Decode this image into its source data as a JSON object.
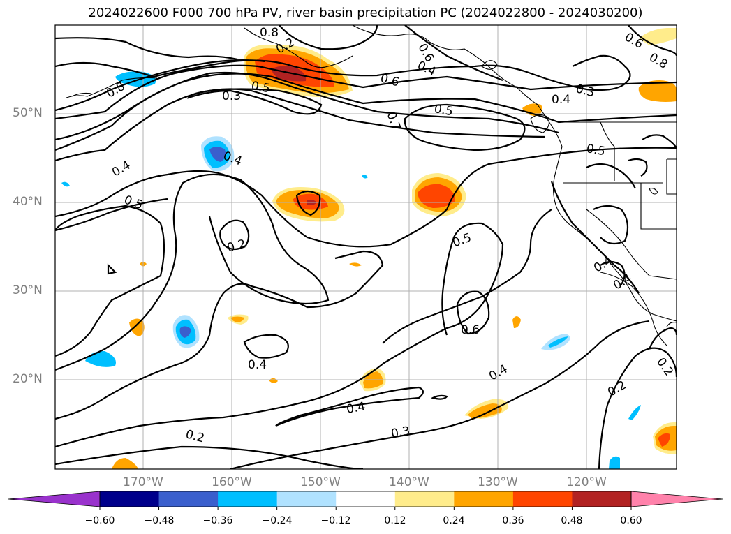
{
  "title": "2024022600 F000 700 hPa PV, river basin precipitation PC (2024022800 - 2024030200)",
  "lat_labels": [
    "50°N",
    "40°N",
    "30°N",
    "20°N"
  ],
  "lon_labels": [
    "170°W",
    "160°W",
    "150°W",
    "140°W",
    "130°W",
    "120°W"
  ],
  "contour_labels": [
    "0.8",
    "0.3",
    "0.6",
    "0.4",
    "0.6",
    "0.5",
    "0.8",
    "0.5",
    "0.3",
    "0.6",
    "0.7",
    "0.8",
    "0.4",
    "0.5",
    "0.4",
    "0.4",
    "0.5",
    "0.4",
    "0.2",
    "0.5",
    "0.4",
    "0.2",
    "0.6",
    "0.4",
    "0.4",
    "0.4",
    "0.3",
    "0.2",
    "0.2",
    "0.2"
  ],
  "colorbar": {
    "ticks": [
      "−0.60",
      "−0.48",
      "−0.36",
      "−0.24",
      "−0.12",
      "0.12",
      "0.24",
      "0.36",
      "0.48",
      "0.60"
    ],
    "colors": [
      "#9932cc",
      "#00008b",
      "#3a5fcd",
      "#00bfff",
      "#b0e2ff",
      "#ffffff",
      "#ffec8b",
      "#ffa500",
      "#ff4500",
      "#b22222",
      "#ff82ab"
    ]
  },
  "palette": {
    "coast": "#000000",
    "grid": "#b0b0b0",
    "contour": "#000000"
  }
}
